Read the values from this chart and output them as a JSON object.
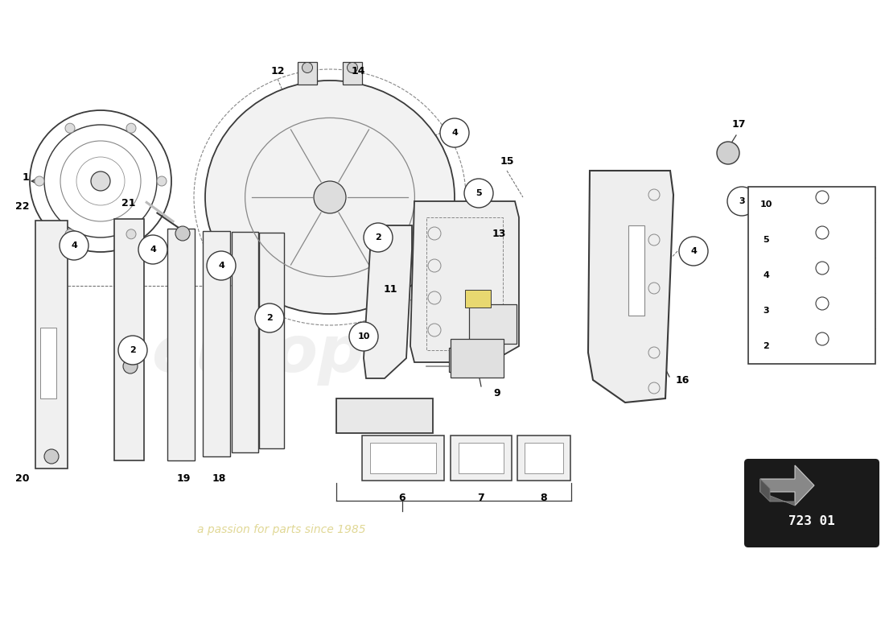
{
  "background_color": "#ffffff",
  "diagram_number": "723 01",
  "fig_width": 11.0,
  "fig_height": 8.0,
  "dpi": 100,
  "watermark1": "europ",
  "watermark2": "a passion for parts since 1985",
  "legend_items": [
    "10",
    "5",
    "4",
    "3",
    "2"
  ],
  "col_main": "#3a3a3a",
  "col_detail": "#888888",
  "col_light": "#cccccc"
}
